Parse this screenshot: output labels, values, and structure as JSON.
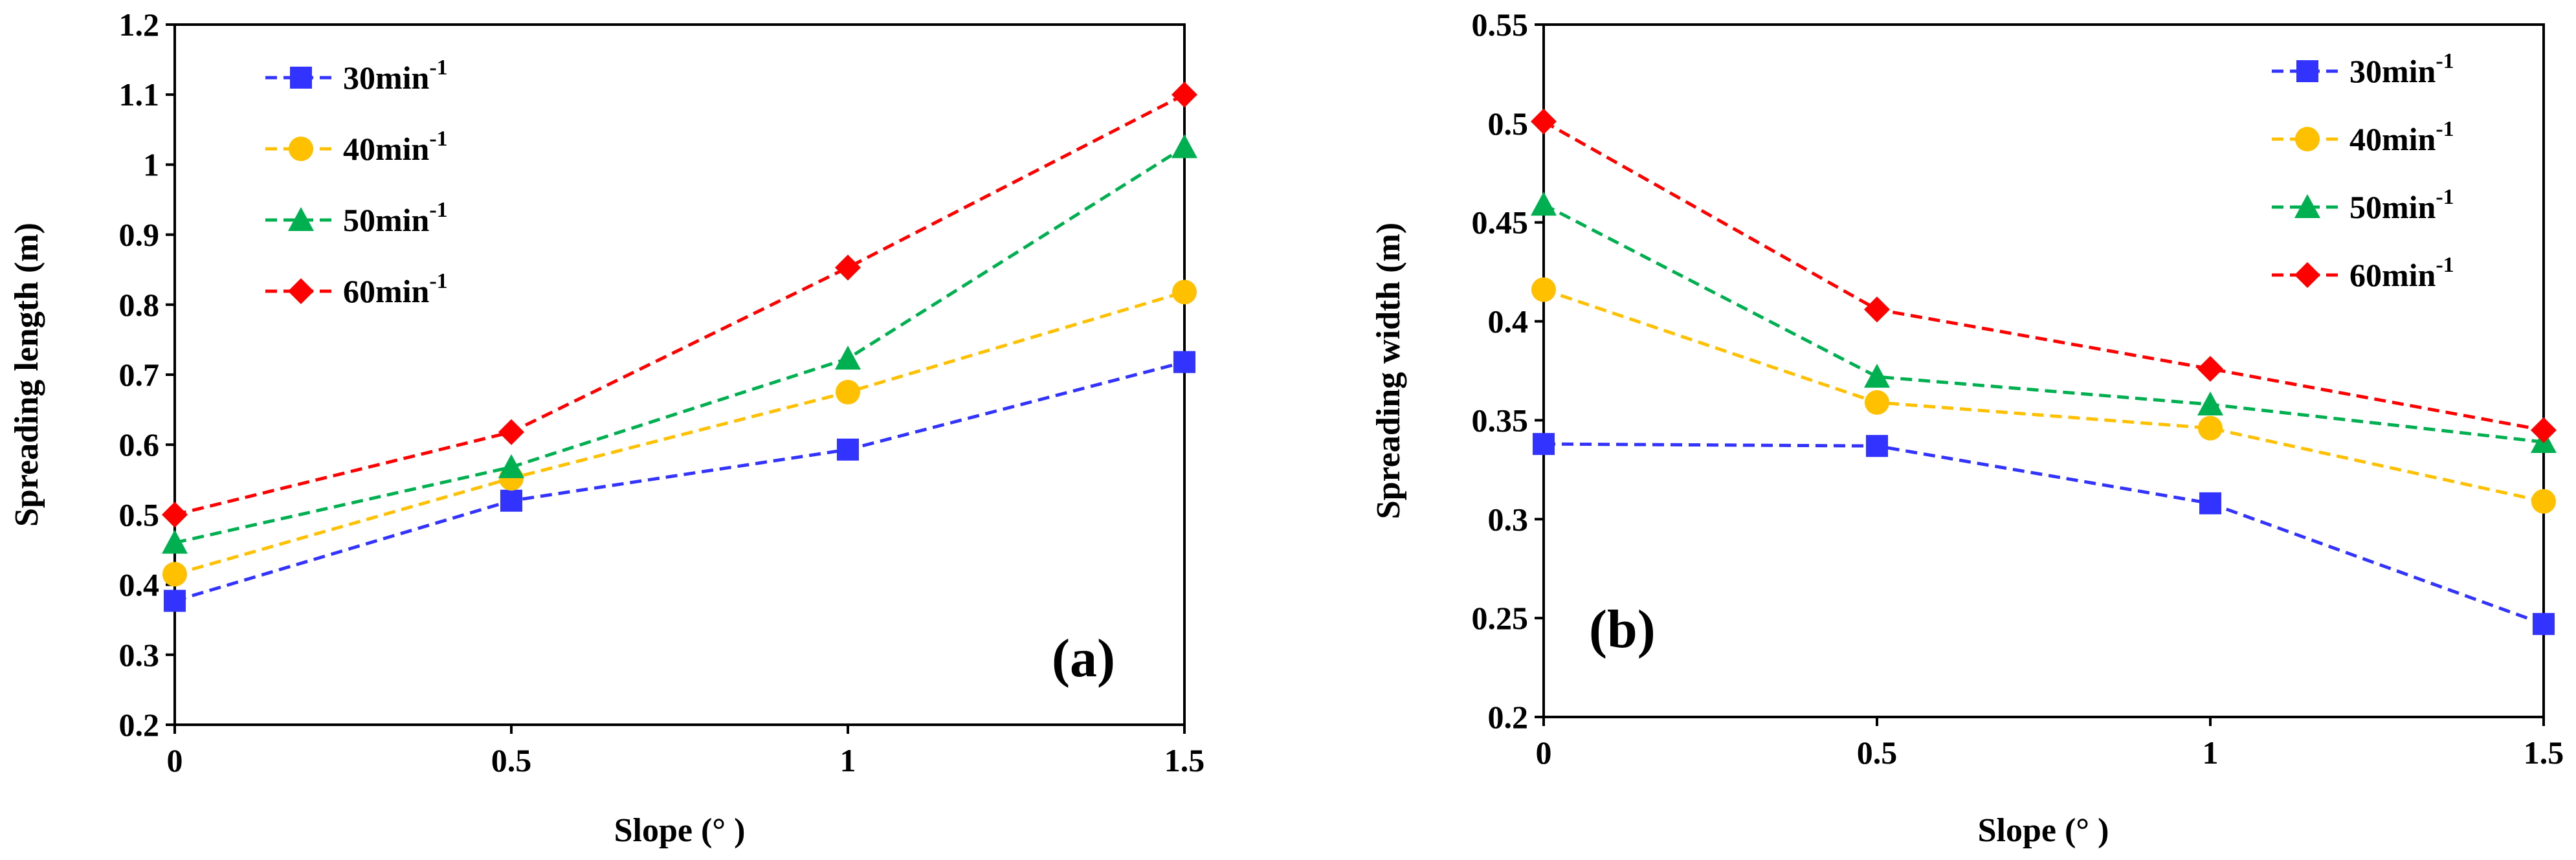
{
  "chart_data": [
    {
      "type": "line",
      "panel_label": "(a)",
      "xlabel": "Slope (° )",
      "ylabel": "Spreading length (m)",
      "x": [
        0,
        0.5,
        1,
        1.5
      ],
      "x_tick_labels": [
        "0",
        "0.5",
        "1",
        "1.5"
      ],
      "ylim": [
        0.2,
        1.2
      ],
      "y_ticks": [
        0.2,
        0.3,
        0.4,
        0.5,
        0.6,
        0.7,
        0.8,
        0.9,
        1.0,
        1.1,
        1.2
      ],
      "y_tick_labels": [
        "0.2",
        "0.3",
        "0.4",
        "0.5",
        "0.6",
        "0.7",
        "0.8",
        "0.9",
        "1",
        "1.1",
        "1.2"
      ],
      "legend_position": "top-left",
      "grid": false,
      "series": [
        {
          "name": "30min",
          "sup": "-1",
          "values": [
            0.377,
            0.52,
            0.593,
            0.718
          ]
        },
        {
          "name": "40min",
          "sup": "-1",
          "values": [
            0.415,
            0.552,
            0.675,
            0.818
          ]
        },
        {
          "name": "50min",
          "sup": "-1",
          "values": [
            0.46,
            0.568,
            0.723,
            1.025
          ]
        },
        {
          "name": "60min",
          "sup": "-1",
          "values": [
            0.5,
            0.618,
            0.853,
            1.1
          ]
        }
      ]
    },
    {
      "type": "line",
      "panel_label": "(b)",
      "xlabel": "Slope (°  )",
      "ylabel": "Spreading width (m)",
      "x": [
        0,
        0.5,
        1,
        1.5
      ],
      "x_tick_labels": [
        "0",
        "0.5",
        "1",
        "1.5"
      ],
      "ylim": [
        0.2,
        0.55
      ],
      "y_ticks": [
        0.2,
        0.25,
        0.3,
        0.35,
        0.4,
        0.45,
        0.5,
        0.55
      ],
      "y_tick_labels": [
        "0.2",
        "0.25",
        "0.3",
        "0.35",
        "0.4",
        "0.45",
        "0.5",
        "0.55"
      ],
      "legend_position": "top-right",
      "grid": false,
      "series": [
        {
          "name": "30min",
          "sup": "-1",
          "values": [
            0.338,
            0.337,
            0.308,
            0.247
          ]
        },
        {
          "name": "40min",
          "sup": "-1",
          "values": [
            0.416,
            0.359,
            0.346,
            0.309
          ]
        },
        {
          "name": "50min",
          "sup": "-1",
          "values": [
            0.459,
            0.372,
            0.358,
            0.339
          ]
        },
        {
          "name": "60min",
          "sup": "-1",
          "values": [
            0.501,
            0.406,
            0.376,
            0.345
          ]
        }
      ]
    }
  ],
  "series_style": [
    {
      "color": "#3333ff",
      "marker": "square"
    },
    {
      "color": "#ffc000",
      "marker": "circle"
    },
    {
      "color": "#00b050",
      "marker": "triangle"
    },
    {
      "color": "#ff0000",
      "marker": "diamond"
    }
  ]
}
